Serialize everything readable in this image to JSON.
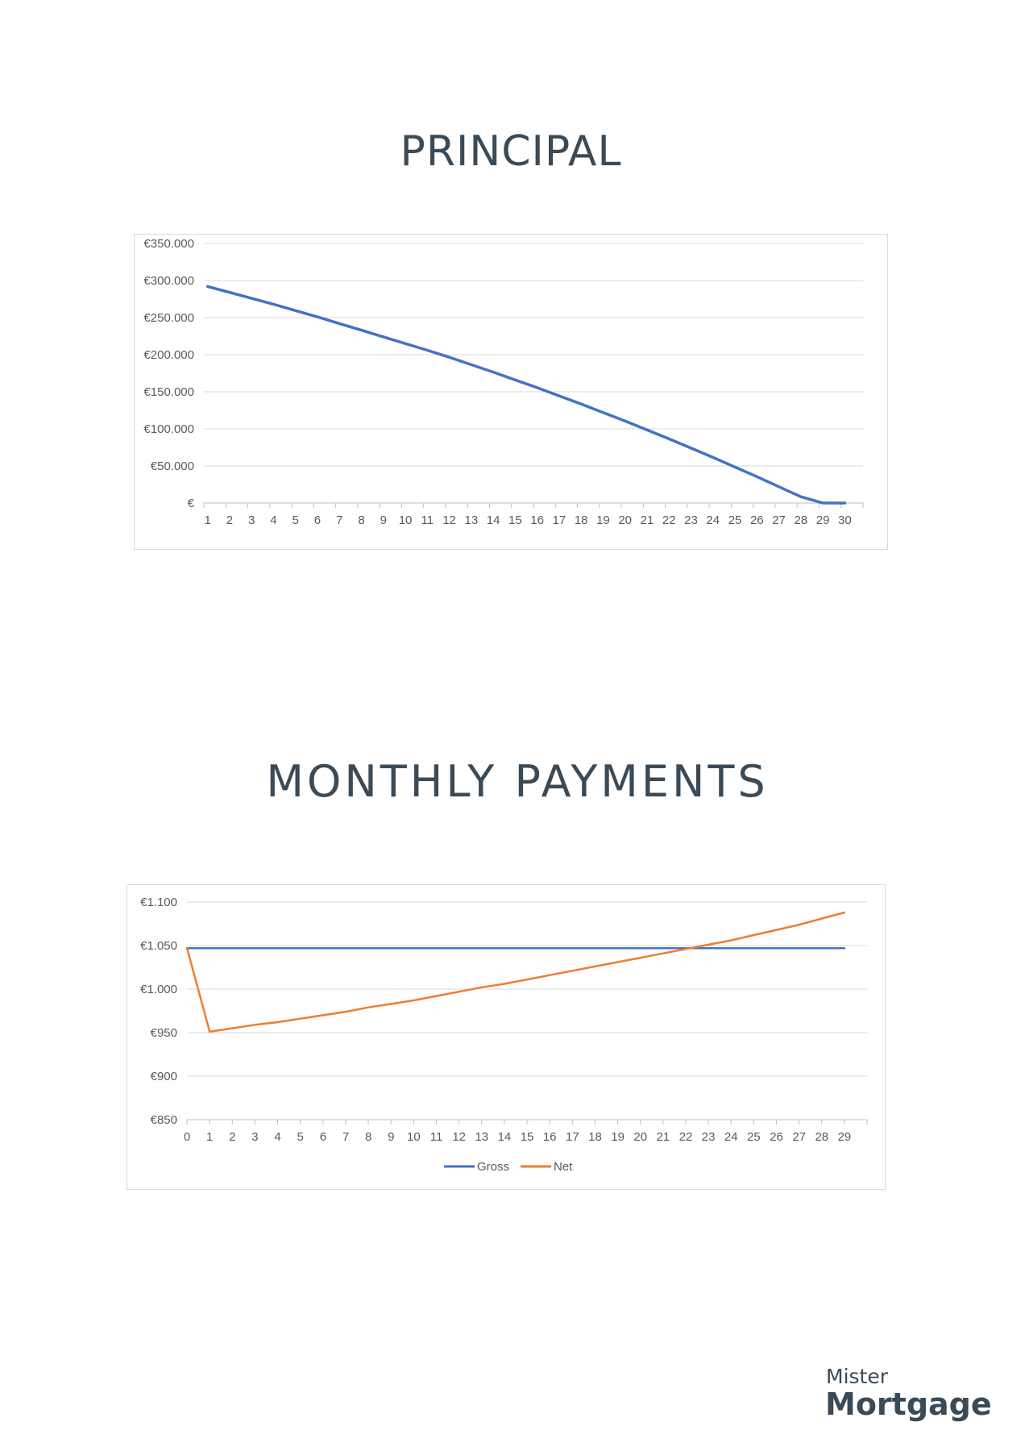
{
  "colors": {
    "title": "#3b4a57",
    "gross": "#4472c4",
    "net": "#ed7d31",
    "gridline": "#d9d9d9",
    "axis_text": "#595959"
  },
  "logo": {
    "line1": "Mister",
    "line2": "Mortgage"
  },
  "chart_data": [
    {
      "id": "principal",
      "type": "line",
      "title": "PRINCIPAL",
      "x": [
        1,
        2,
        3,
        4,
        5,
        6,
        7,
        8,
        9,
        10,
        11,
        12,
        13,
        14,
        15,
        16,
        17,
        18,
        19,
        20,
        21,
        22,
        23,
        24,
        25,
        26,
        27,
        28,
        29,
        30
      ],
      "y_ticks": [
        0,
        50000,
        100000,
        150000,
        200000,
        250000,
        300000,
        350000
      ],
      "y_tick_labels": [
        "€",
        "€50.000",
        "€100.000",
        "€150.000",
        "€200.000",
        "€250.000",
        "€300.000",
        "€350.000"
      ],
      "ylim": [
        0,
        350000
      ],
      "grid": true,
      "legend": "none",
      "series": [
        {
          "values": [
            292000,
            284000,
            276000,
            268000,
            259500,
            251000,
            242000,
            233000,
            224000,
            215000,
            206000,
            196500,
            186500,
            176500,
            166000,
            155500,
            144500,
            133500,
            122000,
            110500,
            98500,
            86500,
            74000,
            61500,
            48500,
            35500,
            22000,
            8500,
            -5000,
            0
          ],
          "color": "#4472c4"
        }
      ]
    },
    {
      "id": "monthly",
      "type": "line",
      "title": "MONTHLY PAYMENTS",
      "x": [
        0,
        1,
        2,
        3,
        4,
        5,
        6,
        7,
        8,
        9,
        10,
        11,
        12,
        13,
        14,
        15,
        16,
        17,
        18,
        19,
        20,
        21,
        22,
        23,
        24,
        25,
        26,
        27,
        28,
        29
      ],
      "y_ticks": [
        850,
        900,
        950,
        1000,
        1050,
        1100
      ],
      "y_tick_labels": [
        "€850",
        "€900",
        "€950",
        "€1.000",
        "€1.050",
        "€1.100"
      ],
      "ylim": [
        850,
        1100
      ],
      "grid": true,
      "legend": "bottom",
      "series": [
        {
          "name": "Gross",
          "values": [
            1047,
            1047,
            1047,
            1047,
            1047,
            1047,
            1047,
            1047,
            1047,
            1047,
            1047,
            1047,
            1047,
            1047,
            1047,
            1047,
            1047,
            1047,
            1047,
            1047,
            1047,
            1047,
            1047,
            1047,
            1047,
            1047,
            1047,
            1047,
            1047,
            1047
          ],
          "color": "#4472c4"
        },
        {
          "name": "Net",
          "values": [
            1047,
            951,
            955,
            959,
            962,
            966,
            970,
            974,
            979,
            983,
            987,
            992,
            997,
            1002,
            1006,
            1011,
            1016,
            1021,
            1026,
            1031,
            1036,
            1041,
            1046,
            1051,
            1056,
            1062,
            1068,
            1074,
            1081,
            1088
          ],
          "color": "#ed7d31"
        }
      ]
    }
  ]
}
